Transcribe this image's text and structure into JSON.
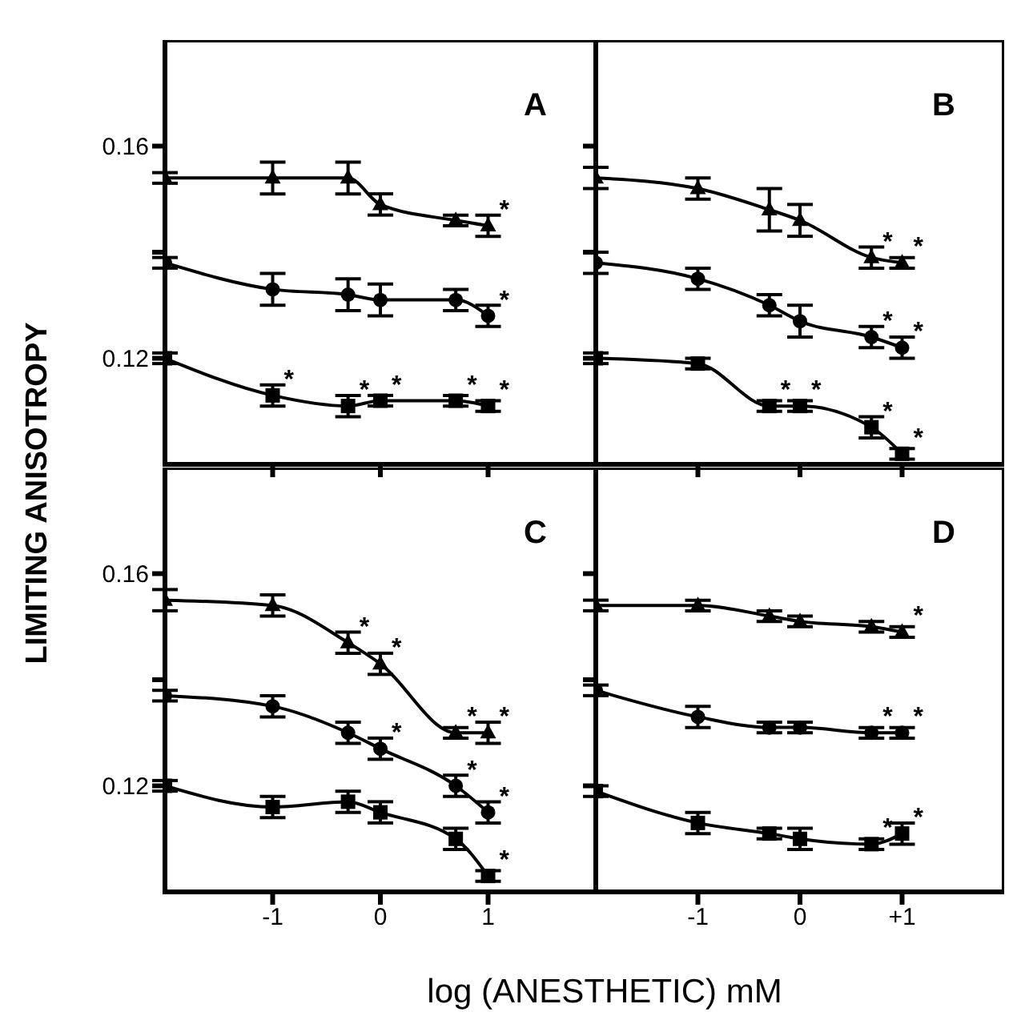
{
  "chart_data": [
    {
      "type": "line",
      "title": "A",
      "ylabel": "LIMITING ANISOTROPY",
      "x": [
        -2,
        -1,
        -0.3,
        0,
        0.7,
        1
      ],
      "xlim": [
        -2,
        2
      ],
      "xticks": [
        -1,
        0,
        1
      ],
      "ylim": [
        0.1,
        0.18
      ],
      "yticks": [
        0.16,
        {
          "value": 0.14,
          "label": null
        },
        0.12
      ],
      "tick_labels": "y",
      "grid": false,
      "legend": false,
      "series": [
        {
          "color": "#000000",
          "marker": "triangle",
          "values": [
            0.154,
            0.154,
            0.154,
            0.149,
            0.146,
            0.145
          ],
          "errors": [
            0.001,
            0.003,
            0.003,
            0.002,
            0.001,
            0.002
          ],
          "value_labels": [
            null,
            null,
            null,
            null,
            null,
            "*"
          ]
        },
        {
          "color": "#000000",
          "marker": "circle",
          "values": [
            0.138,
            0.133,
            0.132,
            0.131,
            0.131,
            0.128
          ],
          "errors": [
            0.001,
            0.003,
            0.003,
            0.003,
            0.002,
            0.002
          ],
          "value_labels": [
            null,
            null,
            null,
            null,
            null,
            "*"
          ]
        },
        {
          "color": "#000000",
          "marker": "square",
          "values": [
            0.12,
            0.113,
            0.111,
            0.112,
            0.112,
            0.111
          ],
          "errors": [
            0.001,
            0.002,
            0.002,
            0.001,
            0.001,
            0.001
          ],
          "value_labels": [
            null,
            "*",
            "*",
            "*",
            "*",
            "*"
          ]
        }
      ]
    },
    {
      "type": "line",
      "title": "B",
      "x": [
        -2,
        -1,
        -0.3,
        0,
        0.7,
        1
      ],
      "xlim": [
        -2,
        2
      ],
      "xticks": [
        -1,
        0,
        1
      ],
      "ylim": [
        0.1,
        0.18
      ],
      "yticks": [
        0.16,
        0.14,
        0.12
      ],
      "tick_labels": false,
      "grid": false,
      "legend": false,
      "series": [
        {
          "color": "#000000",
          "marker": "triangle",
          "values": [
            0.154,
            0.152,
            0.148,
            0.146,
            0.139,
            0.138
          ],
          "errors": [
            0.002,
            0.002,
            0.004,
            0.003,
            0.002,
            0.001
          ],
          "value_labels": [
            null,
            null,
            null,
            null,
            "*",
            "*"
          ]
        },
        {
          "color": "#000000",
          "marker": "circle",
          "values": [
            0.138,
            0.135,
            0.13,
            0.127,
            0.124,
            0.122
          ],
          "errors": [
            0.002,
            0.002,
            0.002,
            0.003,
            0.002,
            0.002
          ],
          "value_labels": [
            null,
            null,
            null,
            null,
            "*",
            "*"
          ]
        },
        {
          "color": "#000000",
          "marker": "square",
          "values": [
            0.12,
            0.119,
            0.111,
            0.111,
            0.107,
            0.102
          ],
          "errors": [
            0.001,
            0.001,
            0.001,
            0.001,
            0.002,
            0.001
          ],
          "value_labels": [
            null,
            null,
            "*",
            "*",
            "*",
            "*"
          ]
        }
      ]
    },
    {
      "type": "line",
      "title": "C",
      "xlabel": "log (ANESTHETIC) mM",
      "x": [
        -2,
        -1,
        -0.3,
        0,
        0.7,
        1
      ],
      "xlim": [
        -2,
        2
      ],
      "xticks": [
        -1,
        0,
        1
      ],
      "ylim": [
        0.1,
        0.18
      ],
      "yticks": [
        0.16,
        {
          "value": 0.14,
          "label": null
        },
        0.12
      ],
      "grid": false,
      "legend": false,
      "series": [
        {
          "color": "#000000",
          "marker": "triangle",
          "values": [
            0.155,
            0.154,
            0.147,
            0.143,
            0.13,
            0.13
          ],
          "errors": [
            0.002,
            0.002,
            0.002,
            0.002,
            0.001,
            0.002
          ],
          "value_labels": [
            null,
            null,
            "*",
            "*",
            "*",
            "*"
          ]
        },
        {
          "color": "#000000",
          "marker": "circle",
          "values": [
            0.137,
            0.135,
            0.13,
            0.127,
            0.12,
            0.115
          ],
          "errors": [
            0.001,
            0.002,
            0.002,
            0.002,
            0.002,
            0.002
          ],
          "value_labels": [
            null,
            null,
            null,
            "*",
            "*",
            "*"
          ]
        },
        {
          "color": "#000000",
          "marker": "square",
          "values": [
            0.12,
            0.116,
            0.117,
            0.115,
            0.11,
            0.103
          ],
          "errors": [
            0.001,
            0.002,
            0.002,
            0.002,
            0.002,
            0.001
          ],
          "value_labels": [
            null,
            null,
            null,
            null,
            null,
            "*"
          ]
        }
      ]
    },
    {
      "type": "line",
      "title": "D",
      "x": [
        -2,
        -1,
        -0.3,
        0,
        0.7,
        1
      ],
      "xlim": [
        -2,
        2
      ],
      "xticks": [
        -1,
        0,
        {
          "value": 1,
          "label": "+1"
        }
      ],
      "ylim": [
        0.1,
        0.18
      ],
      "yticks": [
        0.16,
        0.14,
        0.12
      ],
      "tick_labels": "x",
      "grid": false,
      "legend": false,
      "series": [
        {
          "color": "#000000",
          "marker": "triangle",
          "values": [
            0.154,
            0.154,
            0.152,
            0.151,
            0.15,
            0.149
          ],
          "errors": [
            0.001,
            0.001,
            0.001,
            0.001,
            0.001,
            0.001
          ],
          "value_labels": [
            null,
            null,
            null,
            null,
            null,
            "*"
          ]
        },
        {
          "color": "#000000",
          "marker": "circle",
          "values": [
            0.138,
            0.133,
            0.131,
            0.131,
            0.13,
            0.13
          ],
          "errors": [
            0.001,
            0.002,
            0.001,
            0.001,
            0.001,
            0.001
          ],
          "value_labels": [
            null,
            null,
            null,
            null,
            "*",
            "*"
          ]
        },
        {
          "color": "#000000",
          "marker": "square",
          "values": [
            0.119,
            0.113,
            0.111,
            0.11,
            0.109,
            0.111
          ],
          "errors": [
            0.001,
            0.002,
            0.001,
            0.002,
            0.001,
            0.002
          ],
          "value_labels": [
            null,
            null,
            null,
            null,
            "*",
            "*"
          ]
        }
      ]
    }
  ]
}
